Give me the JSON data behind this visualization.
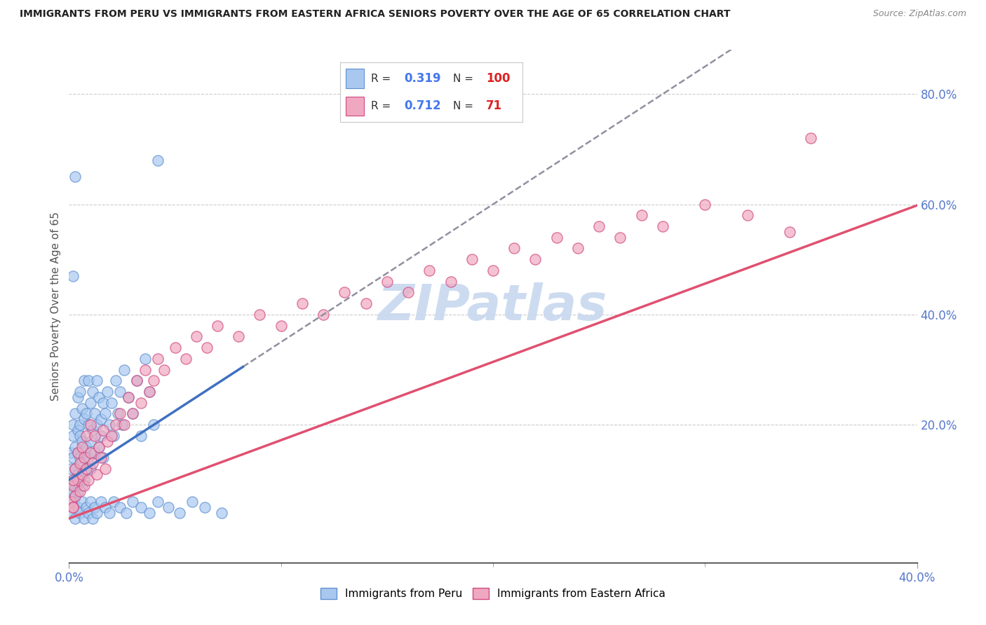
{
  "title": "IMMIGRANTS FROM PERU VS IMMIGRANTS FROM EASTERN AFRICA SENIORS POVERTY OVER THE AGE OF 65 CORRELATION CHART",
  "source": "Source: ZipAtlas.com",
  "ylabel": "Seniors Poverty Over the Age of 65",
  "xlim": [
    0.0,
    0.4
  ],
  "ylim": [
    -0.05,
    0.88
  ],
  "xtick_major": [
    0.0,
    0.4
  ],
  "xtick_minor": [
    0.1,
    0.2,
    0.3
  ],
  "yticks_right": [
    0.2,
    0.4,
    0.6,
    0.8
  ],
  "peru_color": "#a8c8f0",
  "peru_edge": "#6090d0",
  "africa_color": "#f0a8c0",
  "africa_edge": "#d04880",
  "trend_blue": "#4070c0",
  "trend_pink": "#e05070",
  "trend_gray_dash": "#9090a0",
  "watermark_color": "#c8d8ef",
  "background_color": "#ffffff",
  "grid_color": "#cccccc",
  "axis_label_color": "#5577cc",
  "peru_R": 0.319,
  "africa_R": 0.712,
  "peru_N": 100,
  "africa_N": 71,
  "peru_x": [
    0.001,
    0.001,
    0.001,
    0.002,
    0.002,
    0.002,
    0.002,
    0.002,
    0.003,
    0.003,
    0.003,
    0.003,
    0.003,
    0.004,
    0.004,
    0.004,
    0.004,
    0.004,
    0.005,
    0.005,
    0.005,
    0.005,
    0.005,
    0.006,
    0.006,
    0.006,
    0.006,
    0.007,
    0.007,
    0.007,
    0.007,
    0.008,
    0.008,
    0.008,
    0.009,
    0.009,
    0.009,
    0.01,
    0.01,
    0.01,
    0.011,
    0.011,
    0.012,
    0.012,
    0.013,
    0.013,
    0.014,
    0.014,
    0.015,
    0.015,
    0.016,
    0.016,
    0.017,
    0.018,
    0.019,
    0.02,
    0.021,
    0.022,
    0.023,
    0.024,
    0.025,
    0.026,
    0.028,
    0.03,
    0.032,
    0.034,
    0.036,
    0.038,
    0.04,
    0.042,
    0.001,
    0.002,
    0.003,
    0.004,
    0.005,
    0.006,
    0.007,
    0.008,
    0.009,
    0.01,
    0.011,
    0.012,
    0.013,
    0.015,
    0.017,
    0.019,
    0.021,
    0.024,
    0.027,
    0.03,
    0.034,
    0.038,
    0.042,
    0.047,
    0.052,
    0.058,
    0.064,
    0.072,
    0.002,
    0.003
  ],
  "peru_y": [
    0.12,
    0.08,
    0.15,
    0.1,
    0.18,
    0.08,
    0.14,
    0.2,
    0.12,
    0.09,
    0.16,
    0.22,
    0.07,
    0.15,
    0.11,
    0.19,
    0.25,
    0.08,
    0.14,
    0.2,
    0.1,
    0.18,
    0.26,
    0.13,
    0.09,
    0.17,
    0.23,
    0.15,
    0.21,
    0.1,
    0.28,
    0.16,
    0.12,
    0.22,
    0.14,
    0.2,
    0.28,
    0.17,
    0.24,
    0.12,
    0.19,
    0.26,
    0.22,
    0.15,
    0.2,
    0.28,
    0.16,
    0.25,
    0.21,
    0.18,
    0.24,
    0.14,
    0.22,
    0.26,
    0.2,
    0.24,
    0.18,
    0.28,
    0.22,
    0.26,
    0.2,
    0.3,
    0.25,
    0.22,
    0.28,
    0.18,
    0.32,
    0.26,
    0.2,
    0.68,
    0.04,
    0.06,
    0.03,
    0.05,
    0.04,
    0.06,
    0.03,
    0.05,
    0.04,
    0.06,
    0.03,
    0.05,
    0.04,
    0.06,
    0.05,
    0.04,
    0.06,
    0.05,
    0.04,
    0.06,
    0.05,
    0.04,
    0.06,
    0.05,
    0.04,
    0.06,
    0.05,
    0.04,
    0.47,
    0.65
  ],
  "africa_x": [
    0.001,
    0.002,
    0.002,
    0.003,
    0.003,
    0.004,
    0.004,
    0.005,
    0.005,
    0.006,
    0.006,
    0.007,
    0.007,
    0.008,
    0.008,
    0.009,
    0.01,
    0.01,
    0.011,
    0.012,
    0.013,
    0.014,
    0.015,
    0.016,
    0.017,
    0.018,
    0.02,
    0.022,
    0.024,
    0.026,
    0.028,
    0.03,
    0.032,
    0.034,
    0.036,
    0.038,
    0.04,
    0.042,
    0.045,
    0.05,
    0.055,
    0.06,
    0.065,
    0.07,
    0.08,
    0.09,
    0.1,
    0.11,
    0.12,
    0.13,
    0.14,
    0.15,
    0.16,
    0.17,
    0.18,
    0.19,
    0.2,
    0.21,
    0.22,
    0.23,
    0.24,
    0.25,
    0.26,
    0.27,
    0.28,
    0.3,
    0.32,
    0.34,
    0.002,
    0.002,
    0.35
  ],
  "africa_y": [
    0.06,
    0.09,
    0.05,
    0.12,
    0.07,
    0.1,
    0.15,
    0.08,
    0.13,
    0.11,
    0.16,
    0.09,
    0.14,
    0.12,
    0.18,
    0.1,
    0.15,
    0.2,
    0.13,
    0.18,
    0.11,
    0.16,
    0.14,
    0.19,
    0.12,
    0.17,
    0.18,
    0.2,
    0.22,
    0.2,
    0.25,
    0.22,
    0.28,
    0.24,
    0.3,
    0.26,
    0.28,
    0.32,
    0.3,
    0.34,
    0.32,
    0.36,
    0.34,
    0.38,
    0.36,
    0.4,
    0.38,
    0.42,
    0.4,
    0.44,
    0.42,
    0.46,
    0.44,
    0.48,
    0.46,
    0.5,
    0.48,
    0.52,
    0.5,
    0.54,
    0.52,
    0.56,
    0.54,
    0.58,
    0.56,
    0.6,
    0.58,
    0.55,
    0.05,
    0.1,
    0.72
  ]
}
